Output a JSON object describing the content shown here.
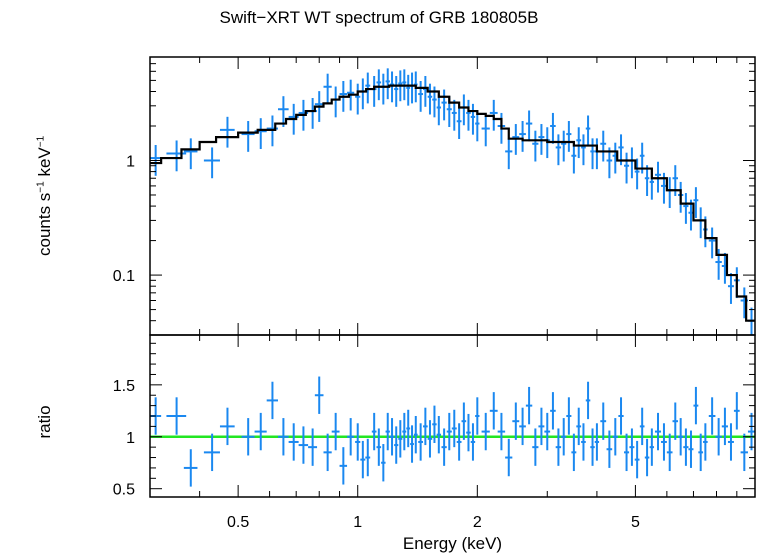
{
  "chart_data": [
    {
      "type": "scatter",
      "panel": "spectrum",
      "title": "Swift−XRT WT spectrum of GRB 180805B",
      "ylabel_parts": [
        "counts s",
        "−1",
        " keV",
        "−1"
      ],
      "xscale": "log",
      "yscale": "log",
      "xlim": [
        0.3,
        10
      ],
      "ylim": [
        0.03,
        8
      ],
      "y_ticks": [
        0.1,
        1
      ],
      "y_tick_labels": [
        "0.1",
        "1"
      ],
      "colors": {
        "data": "#1a88f0",
        "model": "#000000"
      },
      "series": [
        {
          "kind": "data_with_errors",
          "x": [
            0.31,
            0.35,
            0.38,
            0.43,
            0.47,
            0.53,
            0.57,
            0.61,
            0.65,
            0.69,
            0.73,
            0.77,
            0.8,
            0.84,
            0.88,
            0.92,
            0.96,
            1.0,
            1.03,
            1.06,
            1.1,
            1.13,
            1.16,
            1.19,
            1.22,
            1.25,
            1.28,
            1.31,
            1.34,
            1.37,
            1.4,
            1.44,
            1.48,
            1.52,
            1.56,
            1.6,
            1.65,
            1.7,
            1.75,
            1.8,
            1.85,
            1.9,
            1.95,
            2.0,
            2.1,
            2.2,
            2.3,
            2.4,
            2.5,
            2.6,
            2.7,
            2.8,
            2.9,
            3.0,
            3.1,
            3.2,
            3.3,
            3.4,
            3.5,
            3.6,
            3.7,
            3.8,
            3.9,
            4.0,
            4.15,
            4.3,
            4.45,
            4.6,
            4.75,
            4.9,
            5.05,
            5.2,
            5.35,
            5.5,
            5.7,
            5.9,
            6.1,
            6.3,
            6.5,
            6.7,
            6.9,
            7.1,
            7.3,
            7.5,
            7.8,
            8.1,
            8.4,
            8.7,
            9.0,
            9.4,
            9.8
          ],
          "y": [
            1.05,
            1.15,
            1.2,
            1.0,
            1.85,
            1.7,
            1.8,
            1.9,
            2.8,
            2.4,
            2.6,
            2.7,
            3.1,
            4.4,
            3.4,
            3.8,
            3.9,
            3.6,
            4.0,
            4.5,
            4.2,
            4.8,
            4.4,
            4.9,
            4.6,
            4.2,
            4.7,
            4.8,
            4.3,
            4.5,
            4.6,
            3.8,
            4.2,
            3.6,
            3.4,
            2.9,
            3.2,
            2.8,
            2.6,
            2.2,
            2.9,
            2.6,
            2.4,
            2.1,
            1.9,
            2.6,
            2.0,
            1.2,
            1.6,
            1.7,
            2.1,
            1.4,
            1.6,
            1.5,
            2.0,
            1.3,
            1.4,
            1.7,
            1.1,
            1.5,
            1.3,
            1.9,
            1.2,
            1.2,
            1.4,
            1.0,
            1.1,
            1.3,
            0.9,
            1.0,
            0.8,
            1.1,
            0.7,
            0.65,
            0.75,
            0.6,
            0.55,
            0.7,
            0.5,
            0.4,
            0.35,
            0.45,
            0.3,
            0.25,
            0.2,
            0.13,
            0.12,
            0.08,
            0.09,
            0.06,
            0.04
          ],
          "xerr": [
            0.01,
            0.02,
            0.015,
            0.02,
            0.02,
            0.02,
            0.02,
            0.02,
            0.02,
            0.02,
            0.02,
            0.02,
            0.02,
            0.02,
            0.02,
            0.02,
            0.02,
            0.015,
            0.015,
            0.015,
            0.015,
            0.015,
            0.015,
            0.015,
            0.015,
            0.015,
            0.015,
            0.015,
            0.015,
            0.015,
            0.015,
            0.02,
            0.02,
            0.02,
            0.02,
            0.02,
            0.025,
            0.025,
            0.025,
            0.025,
            0.025,
            0.025,
            0.025,
            0.025,
            0.05,
            0.05,
            0.05,
            0.05,
            0.05,
            0.05,
            0.05,
            0.05,
            0.05,
            0.05,
            0.05,
            0.05,
            0.05,
            0.05,
            0.05,
            0.05,
            0.05,
            0.05,
            0.05,
            0.05,
            0.07,
            0.07,
            0.07,
            0.07,
            0.07,
            0.07,
            0.07,
            0.07,
            0.07,
            0.07,
            0.1,
            0.1,
            0.1,
            0.1,
            0.1,
            0.1,
            0.1,
            0.1,
            0.1,
            0.1,
            0.15,
            0.15,
            0.15,
            0.15,
            0.15,
            0.2,
            0.2
          ],
          "yerr_frac": 0.3
        },
        {
          "kind": "model_step",
          "x": [
            0.3,
            0.32,
            0.36,
            0.4,
            0.44,
            0.5,
            0.56,
            0.62,
            0.66,
            0.7,
            0.74,
            0.78,
            0.82,
            0.86,
            0.9,
            0.95,
            1.0,
            1.05,
            1.1,
            1.2,
            1.3,
            1.4,
            1.5,
            1.6,
            1.7,
            1.8,
            1.9,
            2.0,
            2.1,
            2.2,
            2.3,
            2.4,
            2.6,
            3.0,
            3.5,
            4.0,
            4.5,
            5.0,
            5.5,
            6.0,
            6.5,
            7.0,
            7.5,
            8.0,
            8.5,
            9.0,
            9.5,
            10.0
          ],
          "y": [
            0.95,
            1.05,
            1.25,
            1.45,
            1.6,
            1.75,
            1.85,
            2.1,
            2.3,
            2.5,
            2.7,
            2.95,
            3.15,
            3.4,
            3.6,
            3.75,
            4.0,
            4.2,
            4.4,
            4.5,
            4.5,
            4.3,
            4.0,
            3.6,
            3.2,
            2.9,
            2.7,
            2.55,
            2.45,
            2.3,
            1.9,
            1.55,
            1.5,
            1.45,
            1.35,
            1.2,
            1.0,
            0.85,
            0.7,
            0.55,
            0.42,
            0.3,
            0.21,
            0.15,
            0.1,
            0.065,
            0.04,
            0.03
          ]
        }
      ]
    },
    {
      "type": "scatter",
      "panel": "ratio",
      "ylabel": "ratio",
      "xlabel": "Energy (keV)",
      "xscale": "log",
      "xlim": [
        0.3,
        10
      ],
      "ylim": [
        0.42,
        1.98
      ],
      "x_ticks": [
        0.5,
        1,
        2,
        5
      ],
      "x_tick_labels": [
        "0.5",
        "1",
        "2",
        "5"
      ],
      "y_ticks": [
        0.5,
        1,
        1.5
      ],
      "y_tick_labels": [
        "0.5",
        "1",
        "1.5"
      ],
      "reference_line": 1,
      "colors": {
        "data": "#1a88f0",
        "reference": "#22e622"
      },
      "series": [
        {
          "kind": "ratio_with_errors",
          "x": [
            0.31,
            0.35,
            0.38,
            0.43,
            0.47,
            0.53,
            0.57,
            0.61,
            0.65,
            0.69,
            0.73,
            0.77,
            0.8,
            0.84,
            0.88,
            0.92,
            0.96,
            1.0,
            1.03,
            1.06,
            1.1,
            1.13,
            1.16,
            1.19,
            1.22,
            1.25,
            1.28,
            1.31,
            1.34,
            1.37,
            1.4,
            1.44,
            1.48,
            1.52,
            1.56,
            1.6,
            1.65,
            1.7,
            1.75,
            1.8,
            1.85,
            1.9,
            1.95,
            2.0,
            2.1,
            2.2,
            2.3,
            2.4,
            2.5,
            2.6,
            2.7,
            2.8,
            2.9,
            3.0,
            3.1,
            3.2,
            3.3,
            3.4,
            3.5,
            3.6,
            3.7,
            3.8,
            3.9,
            4.0,
            4.15,
            4.3,
            4.45,
            4.6,
            4.75,
            4.9,
            5.05,
            5.2,
            5.35,
            5.5,
            5.7,
            5.9,
            6.1,
            6.3,
            6.5,
            6.7,
            6.9,
            7.1,
            7.3,
            7.5,
            7.8,
            8.1,
            8.4,
            8.7,
            9.0,
            9.4,
            9.8
          ],
          "y": [
            1.2,
            1.2,
            0.7,
            0.85,
            1.1,
            1.0,
            1.05,
            1.35,
            1.0,
            0.95,
            0.92,
            0.9,
            1.4,
            0.85,
            1.05,
            0.72,
            1.0,
            0.95,
            0.78,
            0.8,
            1.05,
            0.9,
            0.75,
            1.05,
            1.0,
            0.92,
            0.98,
            1.05,
            1.08,
            0.93,
            1.02,
            0.95,
            1.1,
            0.98,
            1.12,
            1.02,
            0.9,
            1.05,
            1.08,
            0.95,
            1.15,
            1.04,
            0.95,
            1.2,
            1.05,
            1.25,
            1.05,
            0.8,
            1.15,
            1.1,
            1.3,
            0.9,
            1.1,
            1.05,
            1.25,
            0.9,
            1.0,
            1.2,
            0.85,
            1.1,
            0.95,
            1.35,
            0.9,
            0.95,
            1.15,
            0.88,
            1.0,
            1.2,
            0.85,
            0.9,
            0.78,
            1.1,
            0.8,
            0.9,
            1.05,
            0.95,
            0.85,
            1.15,
            1.0,
            0.9,
            0.88,
            1.3,
            0.85,
            0.95,
            1.2,
            1.0,
            1.1,
            0.95,
            1.25,
            0.85,
            1.05
          ],
          "xerr": [
            0.01,
            0.02,
            0.015,
            0.02,
            0.02,
            0.02,
            0.02,
            0.02,
            0.02,
            0.02,
            0.02,
            0.02,
            0.02,
            0.02,
            0.02,
            0.02,
            0.02,
            0.015,
            0.015,
            0.015,
            0.015,
            0.015,
            0.015,
            0.015,
            0.015,
            0.015,
            0.015,
            0.015,
            0.015,
            0.015,
            0.015,
            0.02,
            0.02,
            0.02,
            0.02,
            0.02,
            0.025,
            0.025,
            0.025,
            0.025,
            0.025,
            0.025,
            0.025,
            0.025,
            0.05,
            0.05,
            0.05,
            0.05,
            0.05,
            0.05,
            0.05,
            0.05,
            0.05,
            0.05,
            0.05,
            0.05,
            0.05,
            0.05,
            0.05,
            0.05,
            0.05,
            0.05,
            0.05,
            0.05,
            0.07,
            0.07,
            0.07,
            0.07,
            0.07,
            0.07,
            0.07,
            0.07,
            0.07,
            0.07,
            0.1,
            0.1,
            0.1,
            0.1,
            0.1,
            0.1,
            0.1,
            0.1,
            0.1,
            0.1,
            0.15,
            0.15,
            0.15,
            0.15,
            0.15,
            0.2,
            0.2
          ],
          "yerr": 0.18
        }
      ]
    }
  ]
}
